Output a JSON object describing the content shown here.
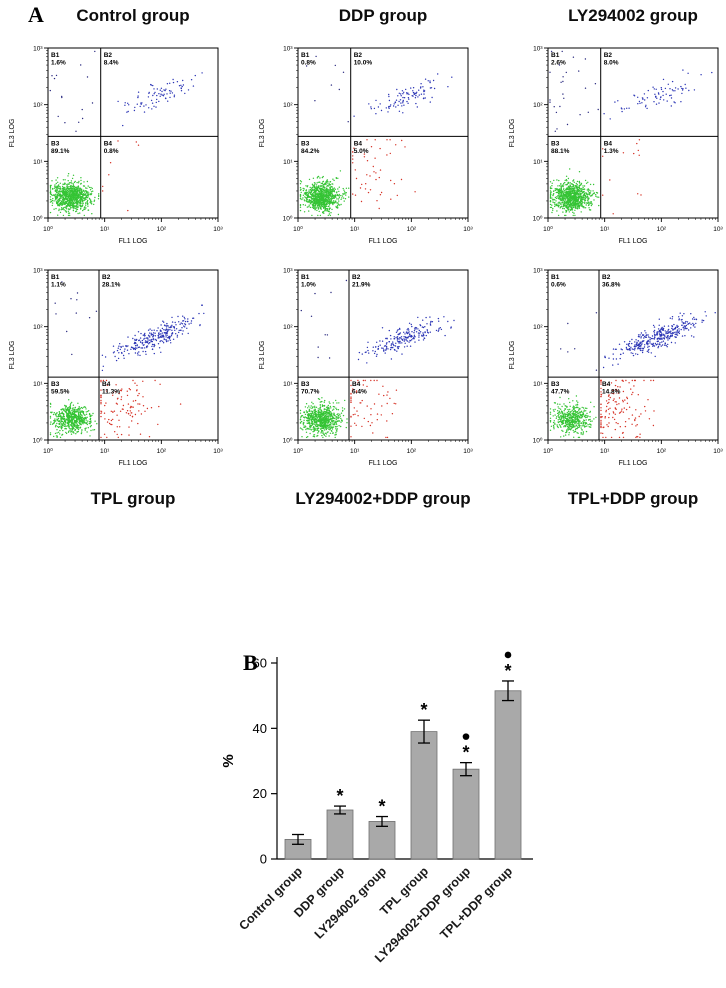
{
  "figure": {
    "panel_a_label": "A",
    "panel_b_label": "B"
  },
  "flow_style": {
    "B1_color": "#2a2a80",
    "B2_color": "#2b35b5",
    "B3_color": "#35c435",
    "B4_color": "#d63226"
  },
  "chart_data": [
    {
      "type": "scatter",
      "subtype": "flow-cytometry-quadrant",
      "title": "Control group",
      "xlabel": "FL1 LOG",
      "ylabel": "FL3 LOG",
      "x_ticks": [
        "10⁰",
        "10¹",
        "10²",
        "10³"
      ],
      "y_ticks": [
        "10⁰",
        "10¹",
        "10²",
        "10³"
      ],
      "gate": {
        "x_frac": 0.31,
        "y_frac": 0.52
      },
      "quadrants": [
        {
          "name": "B1",
          "pct": 1.6
        },
        {
          "name": "B2",
          "pct": 8.4
        },
        {
          "name": "B3",
          "pct": 89.1
        },
        {
          "name": "B4",
          "pct": 0.8
        }
      ]
    },
    {
      "type": "scatter",
      "subtype": "flow-cytometry-quadrant",
      "title": "DDP group",
      "xlabel": "FL1 LOG",
      "ylabel": "FL3 LOG",
      "x_ticks": [
        "10⁰",
        "10¹",
        "10²",
        "10³"
      ],
      "y_ticks": [
        "10⁰",
        "10¹",
        "10²",
        "10³"
      ],
      "gate": {
        "x_frac": 0.31,
        "y_frac": 0.52
      },
      "quadrants": [
        {
          "name": "B1",
          "pct": 0.8
        },
        {
          "name": "B2",
          "pct": 10.0
        },
        {
          "name": "B3",
          "pct": 84.2
        },
        {
          "name": "B4",
          "pct": 5.0
        }
      ]
    },
    {
      "type": "scatter",
      "subtype": "flow-cytometry-quadrant",
      "title": "LY294002 group",
      "xlabel": "FL1 LOG",
      "ylabel": "FL3 LOG",
      "x_ticks": [
        "10⁰",
        "10¹",
        "10²",
        "10³"
      ],
      "y_ticks": [
        "10⁰",
        "10¹",
        "10²",
        "10³"
      ],
      "gate": {
        "x_frac": 0.31,
        "y_frac": 0.52
      },
      "quadrants": [
        {
          "name": "B1",
          "pct": 2.6
        },
        {
          "name": "B2",
          "pct": 8.0
        },
        {
          "name": "B3",
          "pct": 88.1
        },
        {
          "name": "B4",
          "pct": 1.3
        }
      ]
    },
    {
      "type": "scatter",
      "subtype": "flow-cytometry-quadrant",
      "title": "TPL group",
      "xlabel": "FL1 LOG",
      "ylabel": "FL3 LOG",
      "x_ticks": [
        "10⁰",
        "10¹",
        "10²",
        "10³"
      ],
      "y_ticks": [
        "10⁰",
        "10¹",
        "10²",
        "10³"
      ],
      "gate": {
        "x_frac": 0.3,
        "y_frac": 0.63
      },
      "quadrants": [
        {
          "name": "B1",
          "pct": 1.1
        },
        {
          "name": "B2",
          "pct": 28.1
        },
        {
          "name": "B3",
          "pct": 59.5
        },
        {
          "name": "B4",
          "pct": 11.3
        }
      ]
    },
    {
      "type": "scatter",
      "subtype": "flow-cytometry-quadrant",
      "title": "LY294002+DDP group",
      "xlabel": "FL1 LOG",
      "ylabel": "FL3 LOG",
      "x_ticks": [
        "10⁰",
        "10¹",
        "10²",
        "10³"
      ],
      "y_ticks": [
        "10⁰",
        "10¹",
        "10²",
        "10³"
      ],
      "gate": {
        "x_frac": 0.3,
        "y_frac": 0.63
      },
      "quadrants": [
        {
          "name": "B1",
          "pct": 1.0
        },
        {
          "name": "B2",
          "pct": 21.9
        },
        {
          "name": "B3",
          "pct": 70.7
        },
        {
          "name": "B4",
          "pct": 6.4
        }
      ]
    },
    {
      "type": "scatter",
      "subtype": "flow-cytometry-quadrant",
      "title": "TPL+DDP group",
      "xlabel": "FL1 LOG",
      "ylabel": "FL3 LOG",
      "x_ticks": [
        "10⁰",
        "10¹",
        "10²",
        "10³"
      ],
      "y_ticks": [
        "10⁰",
        "10¹",
        "10²",
        "10³"
      ],
      "gate": {
        "x_frac": 0.3,
        "y_frac": 0.63
      },
      "quadrants": [
        {
          "name": "B1",
          "pct": 0.6
        },
        {
          "name": "B2",
          "pct": 36.8
        },
        {
          "name": "B3",
          "pct": 47.7
        },
        {
          "name": "B4",
          "pct": 14.8
        }
      ]
    },
    {
      "type": "bar",
      "ylabel": "%",
      "ylim": [
        0,
        60
      ],
      "yticks": [
        0,
        20,
        40,
        60
      ],
      "bar_color": "#a9a9a9",
      "categories": [
        "Control group",
        "DDP group",
        "LY294002 group",
        "TPL group",
        "LY294002+DDP group",
        "TPL+DDP group"
      ],
      "values": [
        6,
        15,
        11.5,
        39,
        27.5,
        51.5
      ],
      "errors": [
        1.5,
        1.2,
        1.5,
        3.5,
        2,
        3
      ],
      "annotations": [
        [],
        [
          "*"
        ],
        [
          "*"
        ],
        [
          "*"
        ],
        [
          "*",
          "●"
        ],
        [
          "*",
          "●"
        ]
      ],
      "legend": "none",
      "grid": "off"
    }
  ]
}
